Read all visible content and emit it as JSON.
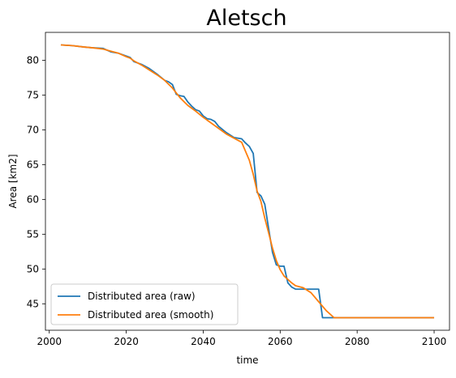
{
  "chart_data": {
    "type": "line",
    "title": "Aletsch",
    "xlabel": "time",
    "ylabel": "Area [km2]",
    "xlim": [
      1999,
      2104
    ],
    "ylim": [
      41.2,
      84.0
    ],
    "x_ticks": [
      2000,
      2020,
      2040,
      2060,
      2080,
      2100
    ],
    "y_ticks": [
      45,
      50,
      55,
      60,
      65,
      70,
      75,
      80
    ],
    "grid": false,
    "legend_position": "lower-left",
    "series": [
      {
        "name": "Distributed area (raw)",
        "color": "#1f77b4",
        "x": [
          2003,
          2006,
          2009,
          2011,
          2014,
          2016,
          2018,
          2020,
          2021,
          2022,
          2024,
          2026,
          2028,
          2030,
          2031,
          2032,
          2033,
          2034,
          2035,
          2036,
          2037,
          2038,
          2039,
          2040,
          2041,
          2042,
          2043,
          2044,
          2046,
          2048,
          2050,
          2051,
          2052,
          2053,
          2054,
          2055,
          2056,
          2057,
          2058,
          2059,
          2060,
          2061,
          2062,
          2063,
          2064,
          2065,
          2066,
          2067,
          2068,
          2069,
          2070,
          2071,
          2072,
          2073,
          2074,
          2075,
          2080,
          2085,
          2090,
          2095,
          2100
        ],
        "y": [
          82.2,
          82.1,
          81.9,
          81.8,
          81.7,
          81.2,
          81.0,
          80.6,
          80.4,
          79.8,
          79.4,
          78.8,
          78.0,
          77.1,
          76.9,
          76.5,
          75.1,
          74.9,
          74.8,
          74.0,
          73.4,
          72.9,
          72.7,
          72.0,
          71.6,
          71.5,
          71.2,
          70.5,
          69.6,
          68.9,
          68.7,
          68.1,
          67.6,
          66.6,
          61.0,
          60.5,
          59.3,
          55.8,
          52.4,
          50.6,
          50.4,
          50.4,
          48.0,
          47.4,
          47.1,
          47.1,
          47.1,
          47.1,
          47.1,
          47.1,
          47.1,
          43.0,
          43.0,
          43.0,
          43.0,
          43.0,
          43.0,
          43.0,
          43.0,
          43.0,
          43.0
        ]
      },
      {
        "name": "Distributed area (smooth)",
        "color": "#ff7f0e",
        "x": [
          2003,
          2006,
          2009,
          2011,
          2014,
          2016,
          2018,
          2020,
          2021,
          2022,
          2024,
          2026,
          2028,
          2030,
          2032,
          2034,
          2036,
          2038,
          2040,
          2042,
          2044,
          2046,
          2048,
          2050,
          2052,
          2053,
          2054,
          2055,
          2056,
          2057,
          2058,
          2059,
          2060,
          2061,
          2062,
          2063,
          2064,
          2066,
          2068,
          2070,
          2072,
          2074,
          2076,
          2080,
          2085,
          2090,
          2095,
          2100
        ],
        "y": [
          82.2,
          82.1,
          81.9,
          81.8,
          81.6,
          81.3,
          81.0,
          80.5,
          80.3,
          79.9,
          79.3,
          78.6,
          77.9,
          77.1,
          76.0,
          74.6,
          73.5,
          72.7,
          71.8,
          71.0,
          70.2,
          69.4,
          68.8,
          68.2,
          65.6,
          63.6,
          61.2,
          59.7,
          57.3,
          55.2,
          53.0,
          51.2,
          49.9,
          49.0,
          48.5,
          48.0,
          47.6,
          47.3,
          46.6,
          45.3,
          44.0,
          43.0,
          43.0,
          43.0,
          43.0,
          43.0,
          43.0,
          43.0
        ]
      }
    ]
  }
}
